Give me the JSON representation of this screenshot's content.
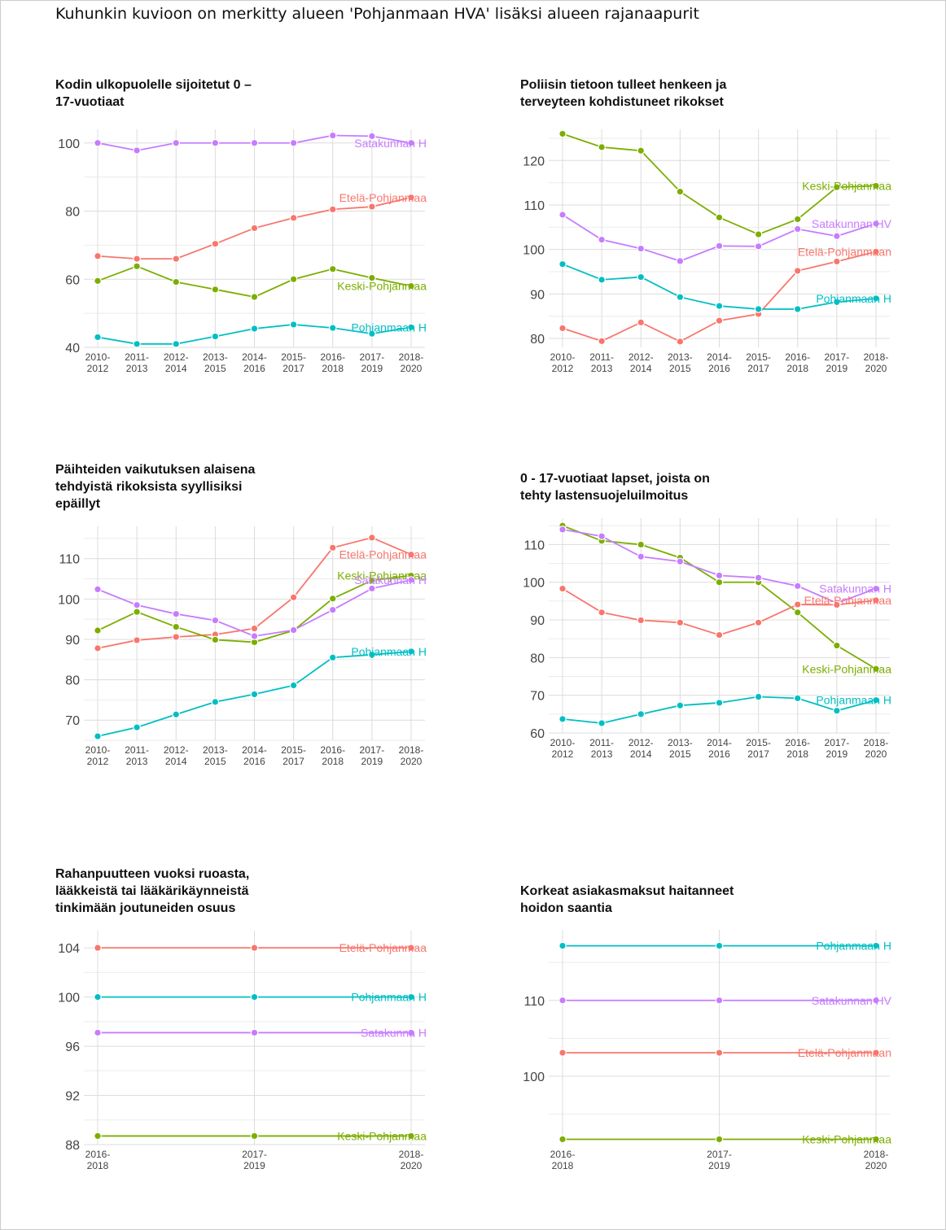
{
  "page_title": "Kuhunkin kuvioon on merkitty alueen 'Pohjanmaan HVA' lisäksi alueen rajanaapurit",
  "colors": {
    "Pohjanmaan HVA": "#00BFC4",
    "Satakunnan HVA": "#C77CFF",
    "Etelä-Pohjanmaan HVA": "#F8766D",
    "Keski-Pohjanmaan HVA": "#7CAE00"
  },
  "chart_data": [
    {
      "type": "line",
      "title": "Kodin ulkopuolelle sijoitetut 0 – 17-vuotiaat",
      "title_lines": [
        "Kodin ulkopuolelle sijoitetut 0 –",
        "17-vuotiaat"
      ],
      "categories": [
        "2010-2012",
        "2011-2013",
        "2012-2014",
        "2013-2015",
        "2014-2016",
        "2015-2017",
        "2016-2018",
        "2017-2019",
        "2018-2020"
      ],
      "ylim": [
        40,
        104
      ],
      "yticks": [
        40,
        60,
        80,
        100
      ],
      "series": [
        {
          "name": "Satakunnan HVA",
          "label": "Satakunnan H",
          "values": [
            100,
            97.8,
            100,
            100,
            100,
            100,
            102.2,
            102,
            100
          ]
        },
        {
          "name": "Etelä-Pohjanmaan HVA",
          "label": "Etelä-Pohjanmaa",
          "values": [
            66.8,
            66,
            66,
            70.4,
            75,
            78,
            80.5,
            81.3,
            84
          ]
        },
        {
          "name": "Keski-Pohjanmaan HVA",
          "label": "Keski-Pohjanmaa",
          "values": [
            59.5,
            63.8,
            59.2,
            57,
            54.8,
            60,
            63,
            60.4,
            58
          ]
        },
        {
          "name": "Pohjanmaan HVA",
          "label": "Pohjanmaan H",
          "values": [
            43,
            41,
            41,
            43.2,
            45.5,
            46.7,
            45.7,
            44,
            45.9
          ]
        }
      ]
    },
    {
      "type": "line",
      "title": "Poliisin tietoon tulleet henkeen ja terveyteen kohdistuneet rikokset",
      "title_lines": [
        "Poliisin tietoon tulleet henkeen ja",
        "terveyteen kohdistuneet rikokset"
      ],
      "categories": [
        "2010-2012",
        "2011-2013",
        "2012-2014",
        "2013-2015",
        "2014-2016",
        "2015-2017",
        "2016-2018",
        "2017-2019",
        "2018-2020"
      ],
      "ylim": [
        78,
        127
      ],
      "yticks": [
        80,
        90,
        100,
        110,
        120
      ],
      "series": [
        {
          "name": "Keski-Pohjanmaan HVA",
          "label": "Keski-Pohjanmaa",
          "values": [
            126,
            123,
            122.2,
            113,
            107.2,
            103.4,
            106.8,
            114,
            114.3
          ]
        },
        {
          "name": "Satakunnan HVA",
          "label": "Satakunnan HV",
          "values": [
            107.8,
            102.2,
            100.2,
            97.4,
            100.8,
            100.7,
            104.6,
            103,
            105.8
          ]
        },
        {
          "name": "Etelä-Pohjanmaan HVA",
          "label": "Etelä-Pohjanmaan",
          "values": [
            82.3,
            79.4,
            83.6,
            79.3,
            84,
            85.5,
            95.2,
            97.3,
            99.5
          ]
        },
        {
          "name": "Pohjanmaan HVA",
          "label": "Pohjanmaan H",
          "values": [
            96.7,
            93.2,
            93.8,
            89.3,
            87.3,
            86.6,
            86.6,
            88.2,
            89
          ]
        }
      ]
    },
    {
      "type": "line",
      "title": "Päihteiden vaikutuksen alaisena tehdyistä rikoksista syyllisiksi epäillyt",
      "title_lines": [
        "Päihteiden vaikutuksen alaisena",
        "tehdyistä rikoksista syyllisiksi",
        "epäillyt"
      ],
      "categories": [
        "2010-2012",
        "2011-2013",
        "2012-2014",
        "2013-2015",
        "2014-2016",
        "2015-2017",
        "2016-2018",
        "2017-2019",
        "2018-2020"
      ],
      "ylim": [
        65,
        118
      ],
      "yticks": [
        70,
        80,
        90,
        100,
        110
      ],
      "series": [
        {
          "name": "Etelä-Pohjanmaan HVA",
          "label": "Etelä-Pohjanmaa",
          "values": [
            87.8,
            89.8,
            90.6,
            91.2,
            92.7,
            100.4,
            112.7,
            115.2,
            111
          ]
        },
        {
          "name": "Keski-Pohjanmaan HVA",
          "label": "Keski-Pohjanmaa",
          "values": [
            92.2,
            96.8,
            93.1,
            89.9,
            89.3,
            92.2,
            100.1,
            104.6,
            105.8
          ]
        },
        {
          "name": "Satakunnan HVA",
          "label": "Satakunnan H",
          "values": [
            102.4,
            98.5,
            96.3,
            94.7,
            90.8,
            92.3,
            97.3,
            102.6,
            104.7
          ]
        },
        {
          "name": "Pohjanmaan HVA",
          "label": "Pohjanmaan H",
          "values": [
            66,
            68.2,
            71.4,
            74.5,
            76.4,
            78.6,
            85.5,
            86.2,
            87
          ]
        }
      ]
    },
    {
      "type": "line",
      "title": "0 - 17-vuotiaat lapset, joista on tehty lastensuojeluilmoitus",
      "title_lines": [
        "0 - 17-vuotiaat lapset, joista on",
        "tehty lastensuojeluilmoitus"
      ],
      "categories": [
        "2010-2012",
        "2011-2013",
        "2012-2014",
        "2013-2015",
        "2014-2016",
        "2015-2017",
        "2016-2018",
        "2017-2019",
        "2018-2020"
      ],
      "ylim": [
        60,
        117
      ],
      "yticks": [
        60,
        70,
        80,
        90,
        100,
        110
      ],
      "series": [
        {
          "name": "Keski-Pohjanmaan HVA",
          "label": "Keski-Pohjanmaa",
          "values": [
            115,
            111,
            110,
            106.5,
            100,
            100,
            92,
            83.2,
            77
          ]
        },
        {
          "name": "Satakunnan HVA",
          "label": "Satakunnan H",
          "values": [
            114,
            112.2,
            106.8,
            105.5,
            101.8,
            101.2,
            99,
            94.5,
            98.3
          ]
        },
        {
          "name": "Etelä-Pohjanmaan HVA",
          "label": "Etelä-Pohjanmaa",
          "values": [
            98.3,
            92,
            89.9,
            89.3,
            86,
            89.3,
            94.1,
            94,
            95.2
          ]
        },
        {
          "name": "Pohjanmaan HVA",
          "label": "Pohjanmaan H",
          "values": [
            63.7,
            62.6,
            65,
            67.3,
            68,
            69.6,
            69.2,
            65.9,
            68.7
          ]
        }
      ]
    },
    {
      "type": "line",
      "title": "Rahanpuutteen vuoksi ruoasta, lääkkeistä tai lääkärikäynneistä tinkimään joutuneiden osuus",
      "title_lines": [
        "Rahanpuutteen vuoksi ruoasta,",
        "lääkkeistä tai lääkärikäynneistä",
        "tinkimään joutuneiden osuus"
      ],
      "categories": [
        "2016-2018",
        "2017-2019",
        "2018-2020"
      ],
      "ylim": [
        88,
        105.4
      ],
      "yticks": [
        88,
        92,
        96,
        100,
        104
      ],
      "series": [
        {
          "name": "Etelä-Pohjanmaan HVA",
          "label": "Etelä-Pohjanmaa",
          "values": [
            104,
            104,
            104
          ]
        },
        {
          "name": "Pohjanmaan HVA",
          "label": "Pohjanmaan H",
          "values": [
            100,
            100,
            100
          ]
        },
        {
          "name": "Satakunnan HVA",
          "label": "Satakunna H",
          "values": [
            97.1,
            97.1,
            97.1
          ]
        },
        {
          "name": "Keski-Pohjanmaan HVA",
          "label": "Keski-Pohjanmaa",
          "values": [
            88.7,
            88.7,
            88.7
          ]
        }
      ]
    },
    {
      "type": "line",
      "title": "Korkeat asiakasmaksut haitanneet hoidon saantia",
      "title_lines": [
        "Korkeat asiakasmaksut haitanneet",
        "hoidon saantia"
      ],
      "categories": [
        "2016-2018",
        "2017-2019",
        "2018-2020"
      ],
      "ylim": [
        91,
        119.3
      ],
      "yticks": [
        100,
        110
      ],
      "series": [
        {
          "name": "Pohjanmaan HVA",
          "label": "Pohjanmaan H",
          "values": [
            117.2,
            117.2,
            117.2
          ]
        },
        {
          "name": "Satakunnan HVA",
          "label": "Satakunnan HV",
          "values": [
            110,
            110,
            110
          ]
        },
        {
          "name": "Etelä-Pohjanmaan HVA",
          "label": "Etelä-Pohjanmaan",
          "values": [
            103.1,
            103.1,
            103.1
          ]
        },
        {
          "name": "Keski-Pohjanmaan HVA",
          "label": "Keski-Pohjanmaa",
          "values": [
            91.7,
            91.7,
            91.7
          ]
        }
      ]
    }
  ]
}
